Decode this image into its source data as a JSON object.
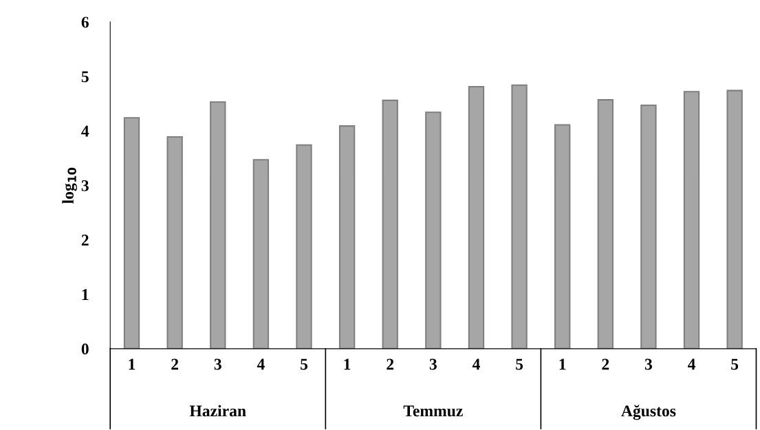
{
  "chart_data": {
    "type": "bar",
    "ylabel": "log$_{10}$",
    "categories": [
      "1",
      "2",
      "3",
      "4",
      "5",
      "1",
      "2",
      "3",
      "4",
      "5",
      "1",
      "2",
      "3",
      "4",
      "5"
    ],
    "values": [
      4.24,
      3.89,
      4.53,
      3.47,
      3.74,
      4.09,
      4.56,
      4.34,
      4.81,
      4.84,
      4.11,
      4.57,
      4.47,
      4.72,
      4.74
    ],
    "color": "#a6a6a6",
    "annotations": [
      "Haziran",
      "Temmuz",
      "Ağustos"
    ],
    "ylim": [
      0,
      6
    ],
    "yticks": [
      0,
      1,
      2,
      3,
      4,
      5,
      6
    ],
    "grid": false,
    "legend": false
  }
}
